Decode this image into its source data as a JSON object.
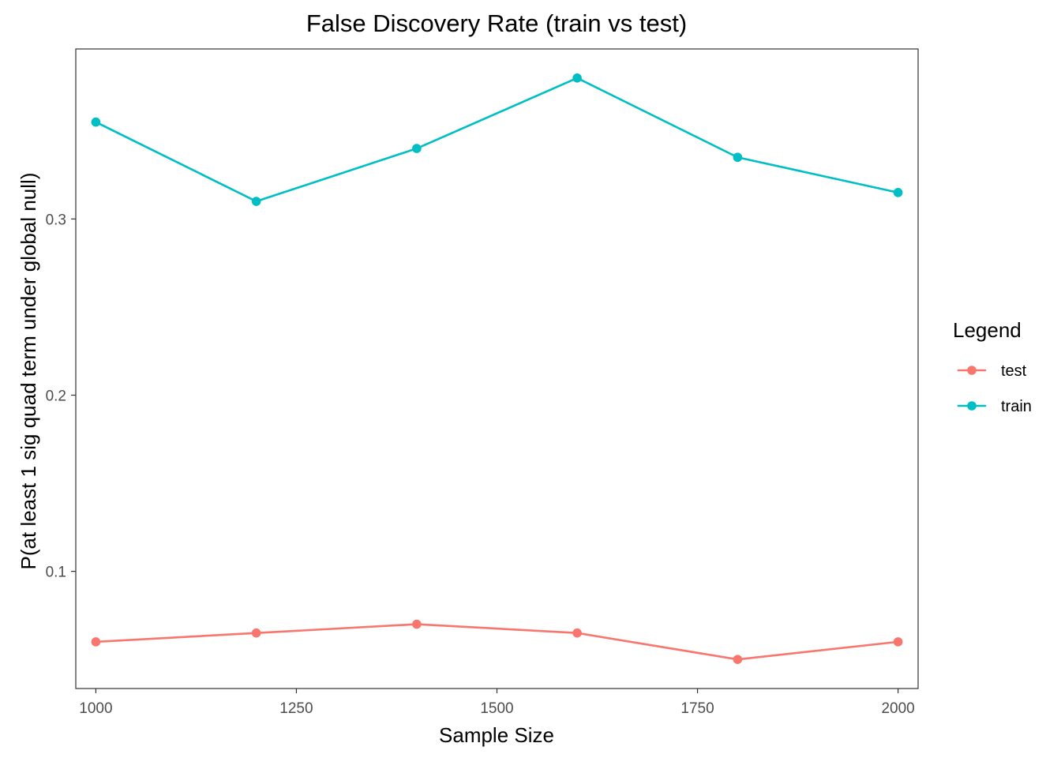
{
  "chart_data": {
    "type": "line",
    "title": "False Discovery Rate (train vs test)",
    "xlabel": "Sample Size",
    "ylabel": "P(at least 1 sig quad term under global null)",
    "x": [
      1000,
      1200,
      1400,
      1600,
      1800,
      2000
    ],
    "x_ticks": [
      1000,
      1250,
      1500,
      1750,
      2000
    ],
    "x_tick_labels": [
      "1000",
      "1250",
      "1500",
      "1750",
      "2000"
    ],
    "y_ticks": [
      0.1,
      0.2,
      0.3
    ],
    "y_tick_labels": [
      "0.1",
      "0.2",
      "0.3"
    ],
    "xlim": [
      975,
      2025
    ],
    "ylim": [
      0.0335,
      0.3965
    ],
    "grid": false,
    "legend": {
      "title": "Legend",
      "position": "right"
    },
    "series": [
      {
        "name": "test",
        "color": "#F8766D",
        "values": [
          0.06,
          0.065,
          0.07,
          0.065,
          0.05,
          0.06
        ]
      },
      {
        "name": "train",
        "color": "#00BFC4",
        "values": [
          0.355,
          0.31,
          0.34,
          0.38,
          0.335,
          0.315
        ]
      }
    ]
  }
}
